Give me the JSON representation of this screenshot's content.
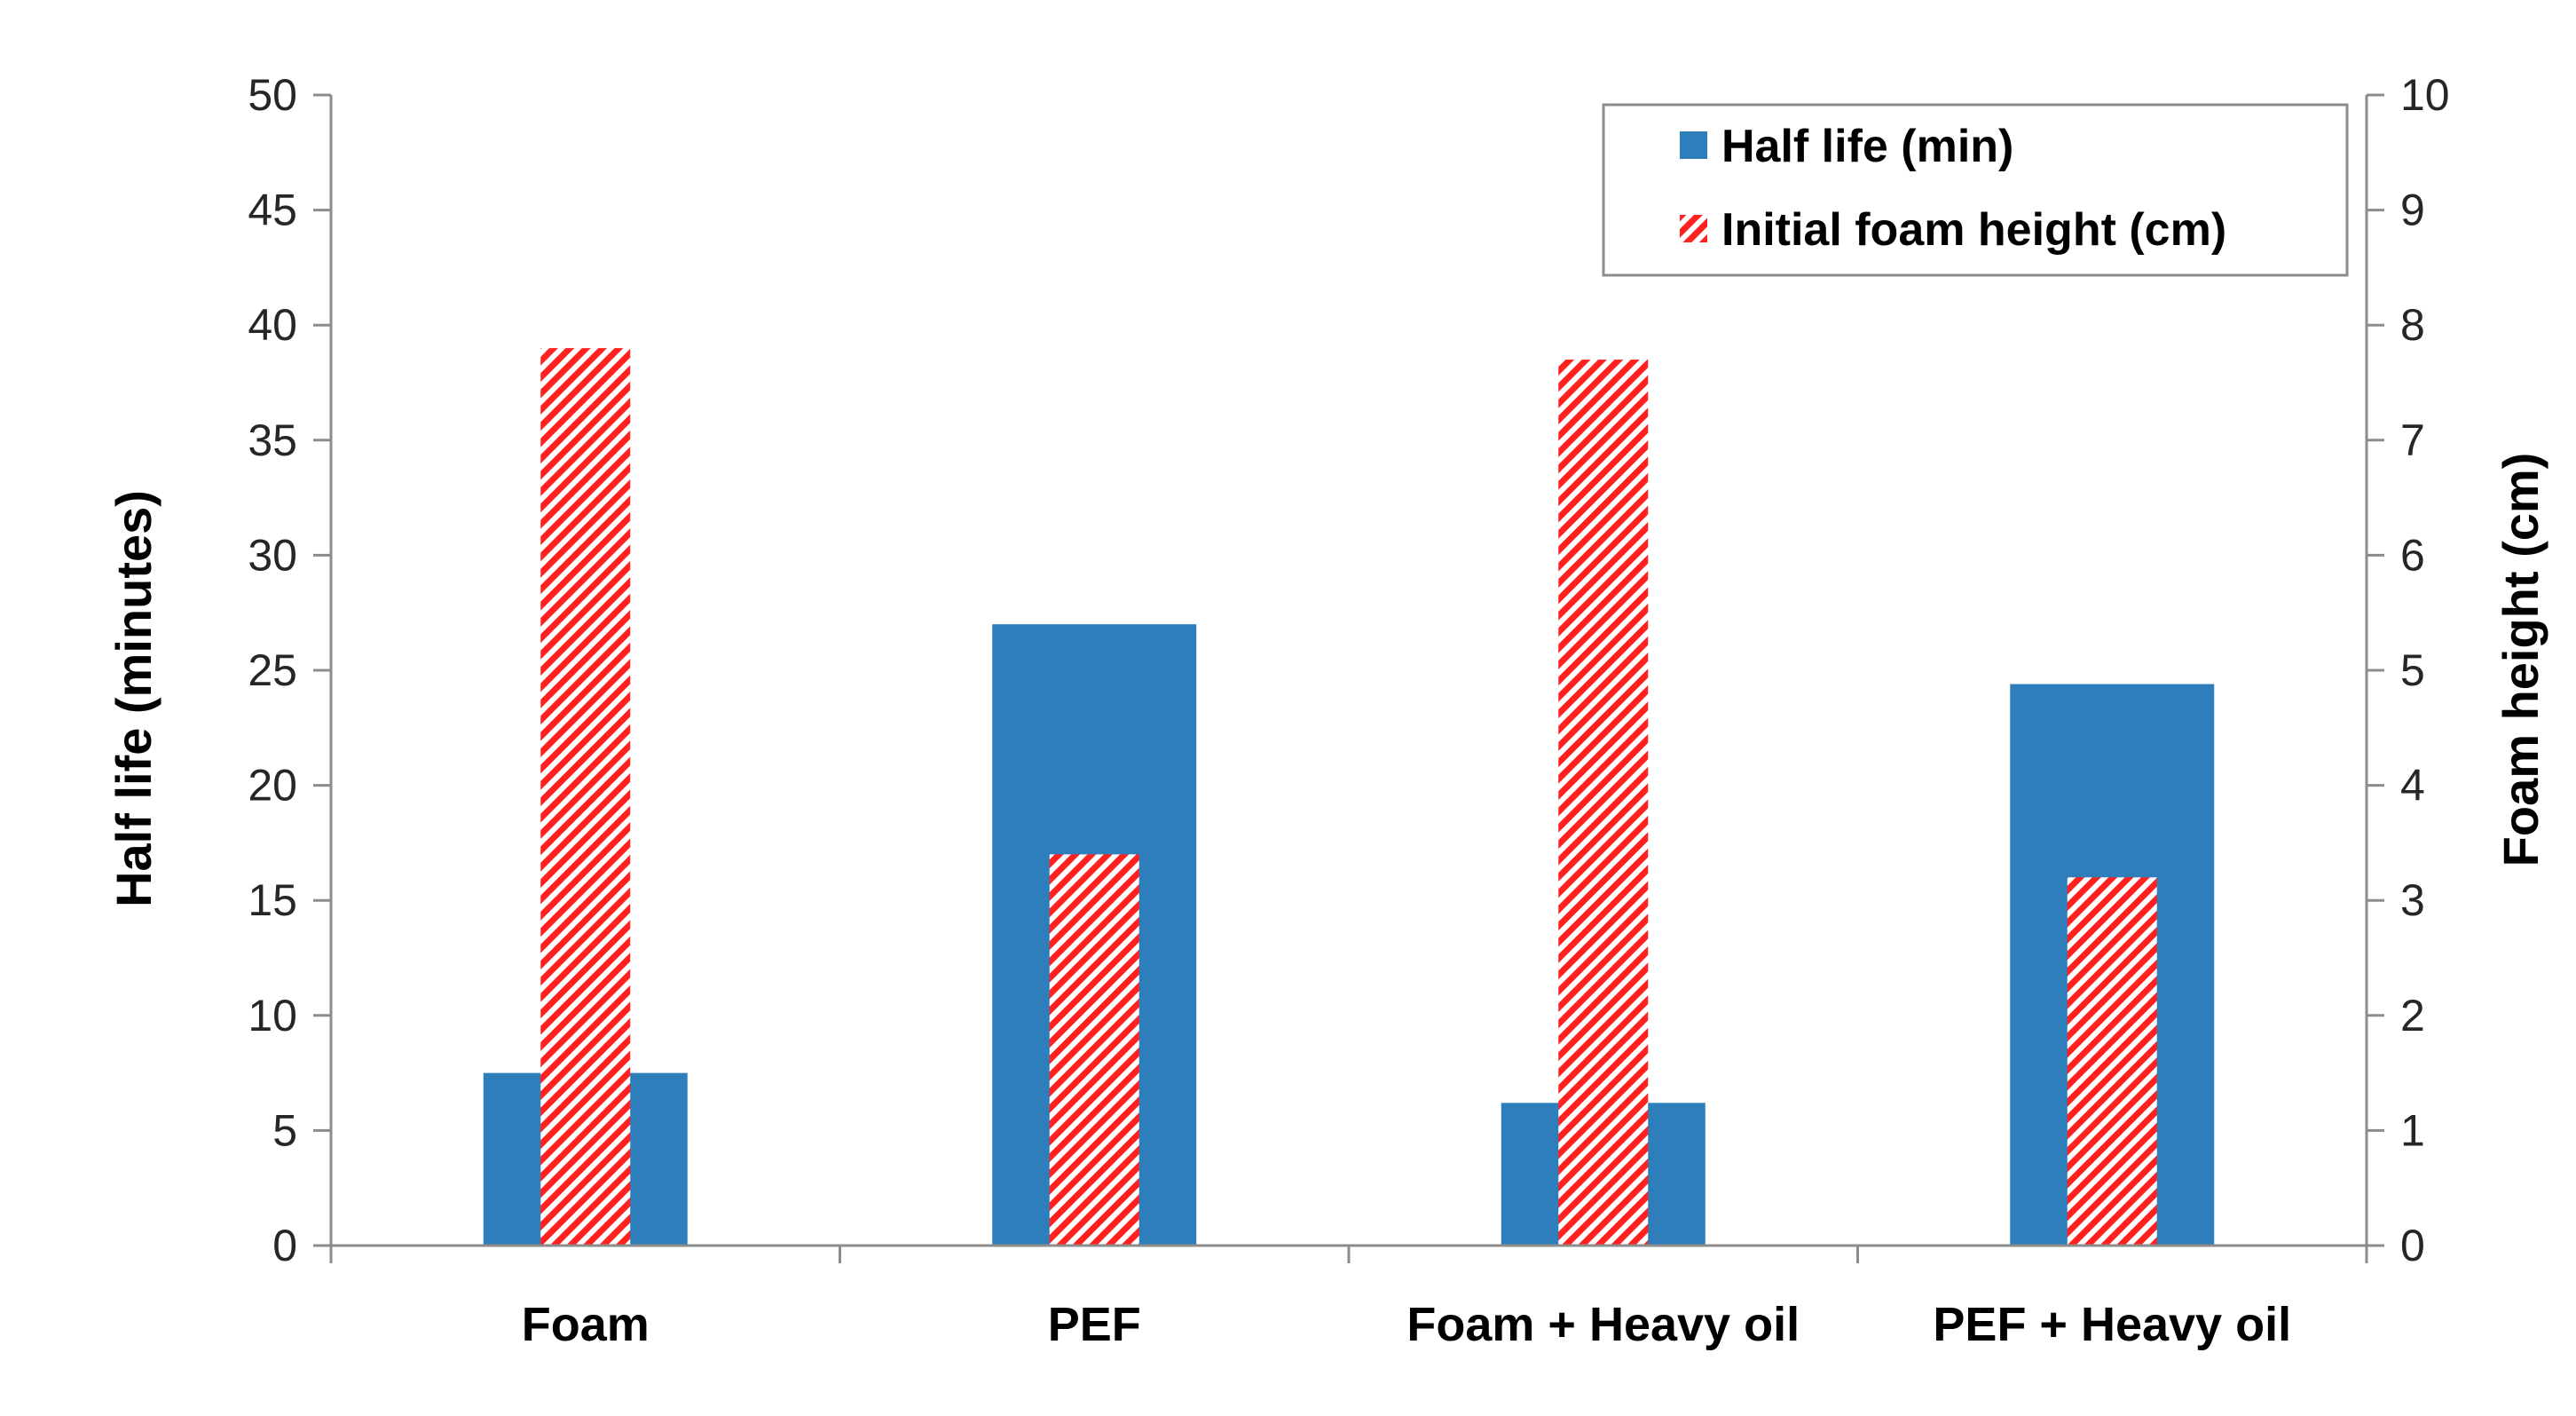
{
  "chart_data": {
    "type": "bar",
    "title": "",
    "categories": [
      "Foam",
      "PEF",
      "Foam + Heavy oil",
      "PEF + Heavy oil"
    ],
    "series": [
      {
        "name": "Half life (min)",
        "axis": "left",
        "values": [
          7.5,
          27,
          6.2,
          24.4
        ],
        "color": "#2e7ebc",
        "pattern": "solid"
      },
      {
        "name": "Initial foam height (cm)",
        "axis": "right",
        "values": [
          7.8,
          3.4,
          7.7,
          3.2
        ],
        "color": "#ff2020",
        "pattern": "diagonal-hatch"
      }
    ],
    "ylabel": "Half life (minutes)",
    "y2label": "Foam height (cm)",
    "xlabel": "",
    "ylim": [
      0,
      50
    ],
    "y2lim": [
      0,
      10
    ],
    "yticks": [
      "0",
      "5",
      "10",
      "15",
      "20",
      "25",
      "30",
      "35",
      "40",
      "45",
      "50"
    ],
    "y2ticks": [
      "0",
      "1",
      "2",
      "3",
      "4",
      "5",
      "6",
      "7",
      "8",
      "9",
      "10"
    ],
    "grid": false,
    "legend_position": "top-right"
  }
}
